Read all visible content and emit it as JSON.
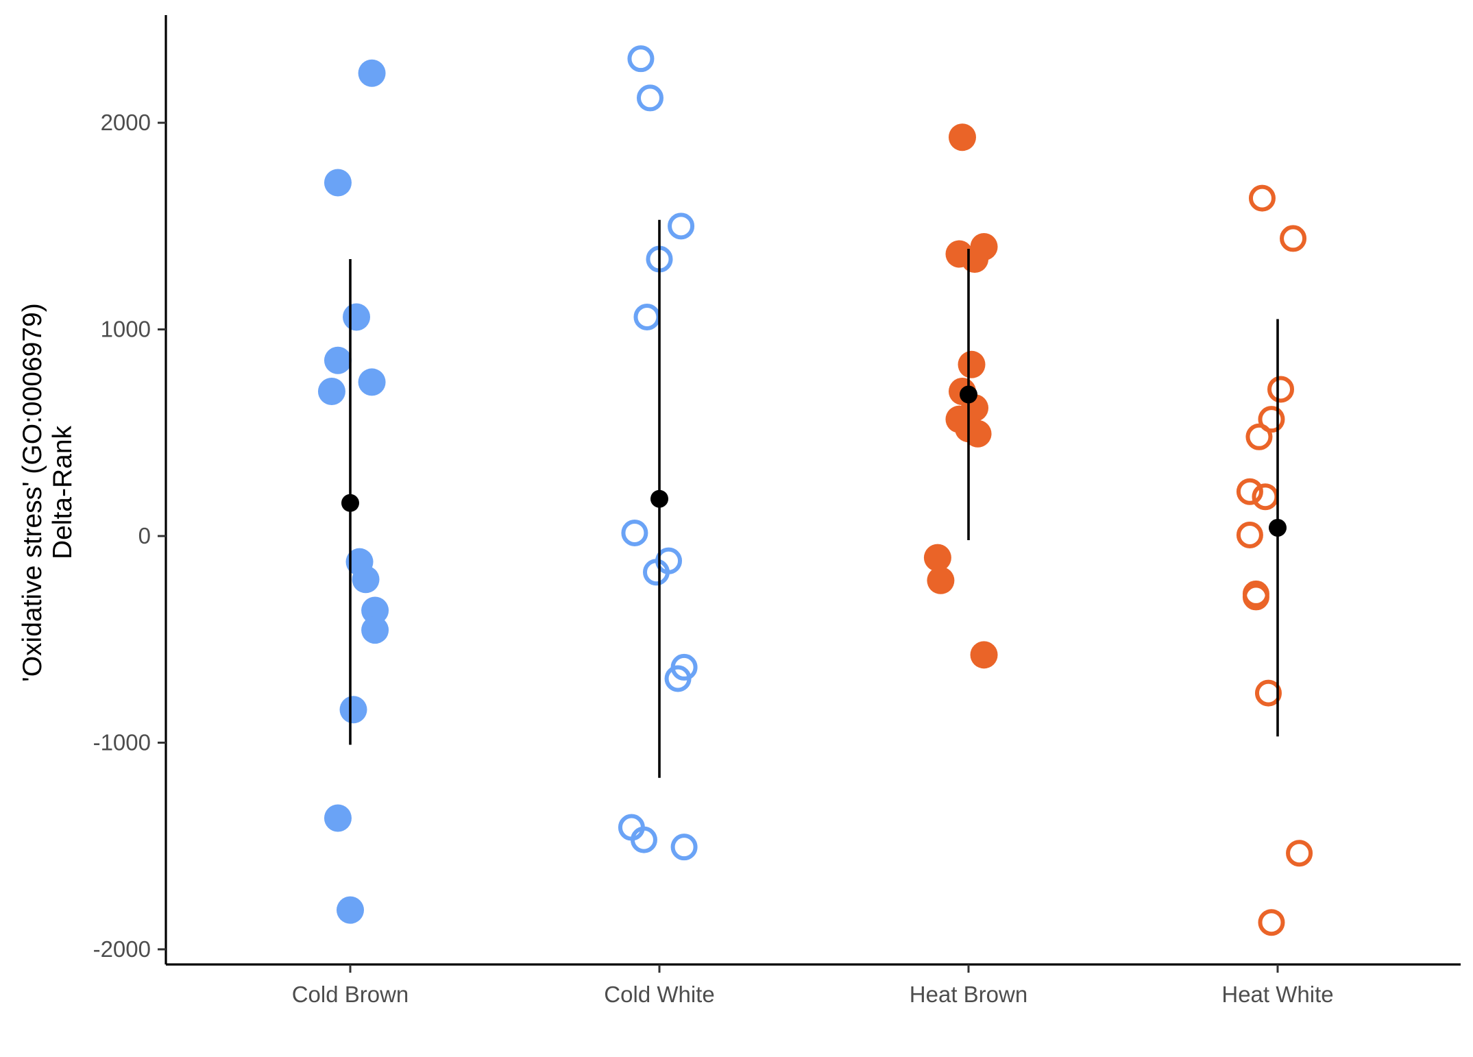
{
  "chart_data": {
    "type": "scatter",
    "title": "",
    "xlabel": "",
    "ylabel_lines": [
      "'Oxidative stress' (GO:0006979)",
      "Delta-Rank"
    ],
    "categories": [
      "Cold Brown",
      "Cold White",
      "Heat Brown",
      "Heat White"
    ],
    "y_ticks": [
      2000,
      1000,
      0,
      -1000,
      -2000
    ],
    "y_tick_labels": [
      "2000",
      "1000",
      "0",
      "-1000",
      "-2000"
    ],
    "ylim": [
      -2080,
      2520
    ],
    "grid": false,
    "legend": "none",
    "colors": {
      "cold": "#6aa3f6",
      "heat": "#ea6428",
      "summary": "#000000"
    },
    "series": [
      {
        "category": "Cold Brown",
        "fill": "filled",
        "color": "#6aa3f6",
        "points": [
          {
            "x": 0.07,
            "y": 2240
          },
          {
            "x": -0.04,
            "y": 1710
          },
          {
            "x": 0.02,
            "y": 1060
          },
          {
            "x": -0.04,
            "y": 850
          },
          {
            "x": 0.07,
            "y": 745
          },
          {
            "x": -0.06,
            "y": 700
          },
          {
            "x": 0.03,
            "y": -125
          },
          {
            "x": 0.05,
            "y": -210
          },
          {
            "x": 0.08,
            "y": -360
          },
          {
            "x": 0.08,
            "y": -455
          },
          {
            "x": 0.01,
            "y": -840
          },
          {
            "x": -0.04,
            "y": -1365
          },
          {
            "x": 0.0,
            "y": -1810
          }
        ],
        "mean": 160,
        "interval": [
          -1010,
          1340
        ]
      },
      {
        "category": "Cold White",
        "fill": "open",
        "color": "#6aa3f6",
        "points": [
          {
            "x": -0.06,
            "y": 2310
          },
          {
            "x": -0.03,
            "y": 2120
          },
          {
            "x": 0.07,
            "y": 1500
          },
          {
            "x": 0.0,
            "y": 1340
          },
          {
            "x": -0.04,
            "y": 1060
          },
          {
            "x": -0.08,
            "y": 15
          },
          {
            "x": 0.03,
            "y": -120
          },
          {
            "x": -0.01,
            "y": -175
          },
          {
            "x": 0.08,
            "y": -635
          },
          {
            "x": 0.06,
            "y": -690
          },
          {
            "x": -0.09,
            "y": -1410
          },
          {
            "x": -0.05,
            "y": -1470
          },
          {
            "x": 0.08,
            "y": -1505
          }
        ],
        "mean": 180,
        "interval": [
          -1170,
          1530
        ]
      },
      {
        "category": "Heat Brown",
        "fill": "filled",
        "color": "#ea6428",
        "points": [
          {
            "x": -0.02,
            "y": 1930
          },
          {
            "x": 0.05,
            "y": 1400
          },
          {
            "x": -0.03,
            "y": 1365
          },
          {
            "x": 0.02,
            "y": 1340
          },
          {
            "x": 0.01,
            "y": 830
          },
          {
            "x": -0.02,
            "y": 700
          },
          {
            "x": 0.02,
            "y": 620
          },
          {
            "x": -0.03,
            "y": 565
          },
          {
            "x": 0.0,
            "y": 520
          },
          {
            "x": 0.03,
            "y": 495
          },
          {
            "x": -0.1,
            "y": -105
          },
          {
            "x": -0.09,
            "y": -215
          },
          {
            "x": 0.05,
            "y": -575
          }
        ],
        "mean": 685,
        "interval": [
          -20,
          1390
        ]
      },
      {
        "category": "Heat White",
        "fill": "open",
        "color": "#ea6428",
        "points": [
          {
            "x": -0.05,
            "y": 1635
          },
          {
            "x": 0.05,
            "y": 1440
          },
          {
            "x": 0.01,
            "y": 710
          },
          {
            "x": -0.02,
            "y": 565
          },
          {
            "x": -0.06,
            "y": 480
          },
          {
            "x": -0.09,
            "y": 215
          },
          {
            "x": -0.04,
            "y": 190
          },
          {
            "x": -0.09,
            "y": 5
          },
          {
            "x": -0.07,
            "y": -280
          },
          {
            "x": -0.07,
            "y": -295
          },
          {
            "x": -0.03,
            "y": -760
          },
          {
            "x": 0.07,
            "y": -1535
          },
          {
            "x": -0.02,
            "y": -1870
          }
        ],
        "mean": 40,
        "interval": [
          -970,
          1050
        ]
      }
    ]
  }
}
